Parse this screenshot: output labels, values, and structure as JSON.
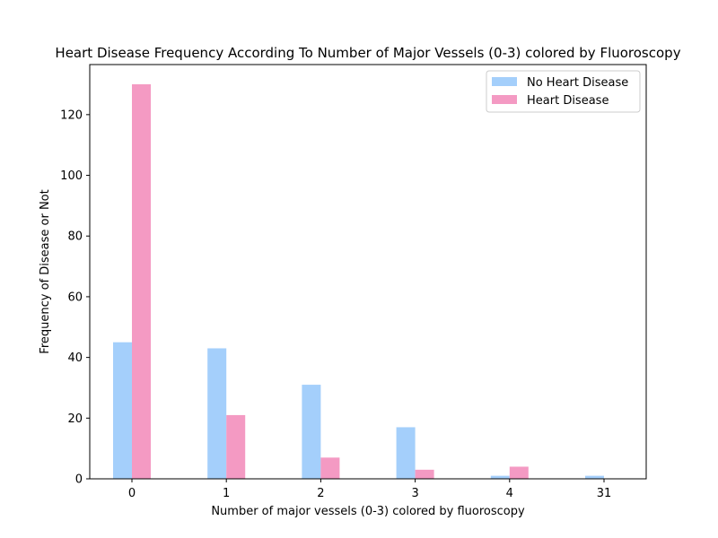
{
  "chart_data": {
    "type": "bar",
    "title": "Heart Disease Frequency According To Number of Major Vessels (0-3) colored by Fluoroscopy",
    "xlabel": "Number of major vessels (0-3) colored by fluoroscopy",
    "ylabel": "Frequency of Disease or Not",
    "categories": [
      "0",
      "1",
      "2",
      "3",
      "4",
      "31"
    ],
    "series": [
      {
        "name": "No Heart Disease",
        "color": "#a4cffb",
        "values": [
          45,
          43,
          31,
          17,
          1,
          1
        ]
      },
      {
        "name": "Heart Disease",
        "color": "#f49ac3",
        "values": [
          130,
          21,
          7,
          3,
          4,
          0
        ]
      }
    ],
    "ylim": [
      0,
      136.5
    ],
    "yticks": [
      0,
      20,
      40,
      60,
      80,
      100,
      120
    ],
    "grid": false,
    "legend": "top-right"
  }
}
